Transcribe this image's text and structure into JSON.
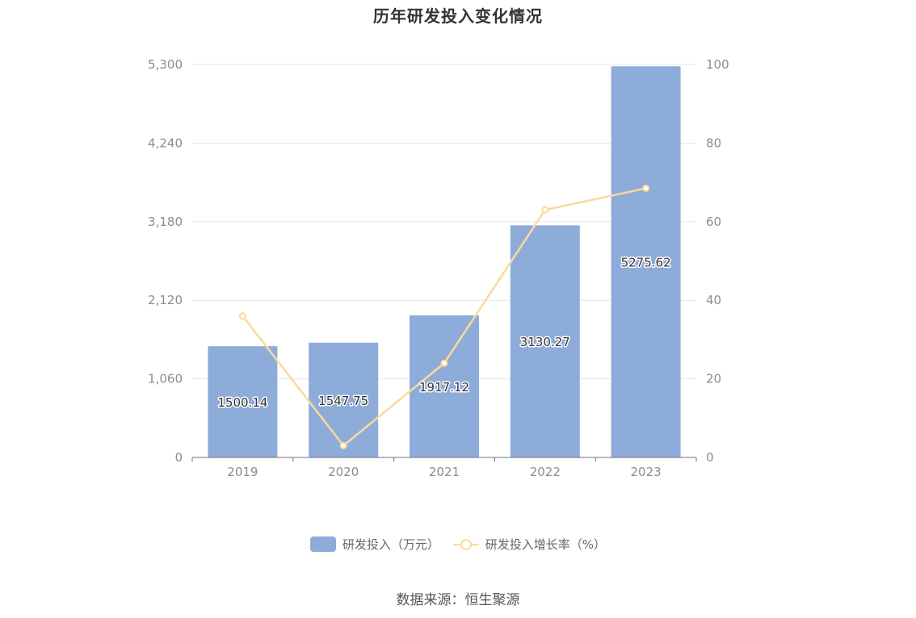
{
  "chart_data": {
    "type": "bar",
    "title": "历年研发投入变化情况",
    "categories": [
      "2019",
      "2020",
      "2021",
      "2022",
      "2023"
    ],
    "series": [
      {
        "name": "研发投入（万元）",
        "type": "bar",
        "axis": "left",
        "values": [
          1500.14,
          1547.75,
          1917.12,
          3130.27,
          5275.62
        ],
        "data_labels": [
          "1500.14",
          "1547.75",
          "1917.12",
          "3130.27",
          "5275.62"
        ],
        "color": "#8eacda"
      },
      {
        "name": "研发投入增长率（%）",
        "type": "line",
        "axis": "right",
        "values": [
          36,
          3,
          24,
          63,
          68.5
        ],
        "color": "#fcd99b"
      }
    ],
    "y_left": {
      "ticks": [
        0,
        1060,
        2120,
        3180,
        4240,
        5300
      ],
      "tick_labels": [
        "0",
        "1,060",
        "2,120",
        "3,180",
        "4,240",
        "5,300"
      ],
      "ylim": [
        0,
        5300
      ]
    },
    "y_right": {
      "ticks": [
        0,
        20,
        40,
        60,
        80,
        100
      ],
      "tick_labels": [
        "0",
        "20",
        "40",
        "60",
        "80",
        "100"
      ],
      "ylim": [
        0,
        100
      ]
    },
    "grid": true,
    "legend_position": "bottom-center"
  },
  "legend": {
    "bar_label": "研发投入（万元）",
    "line_label": "研发投入增长率（%）"
  },
  "source": "数据来源：恒生聚源"
}
